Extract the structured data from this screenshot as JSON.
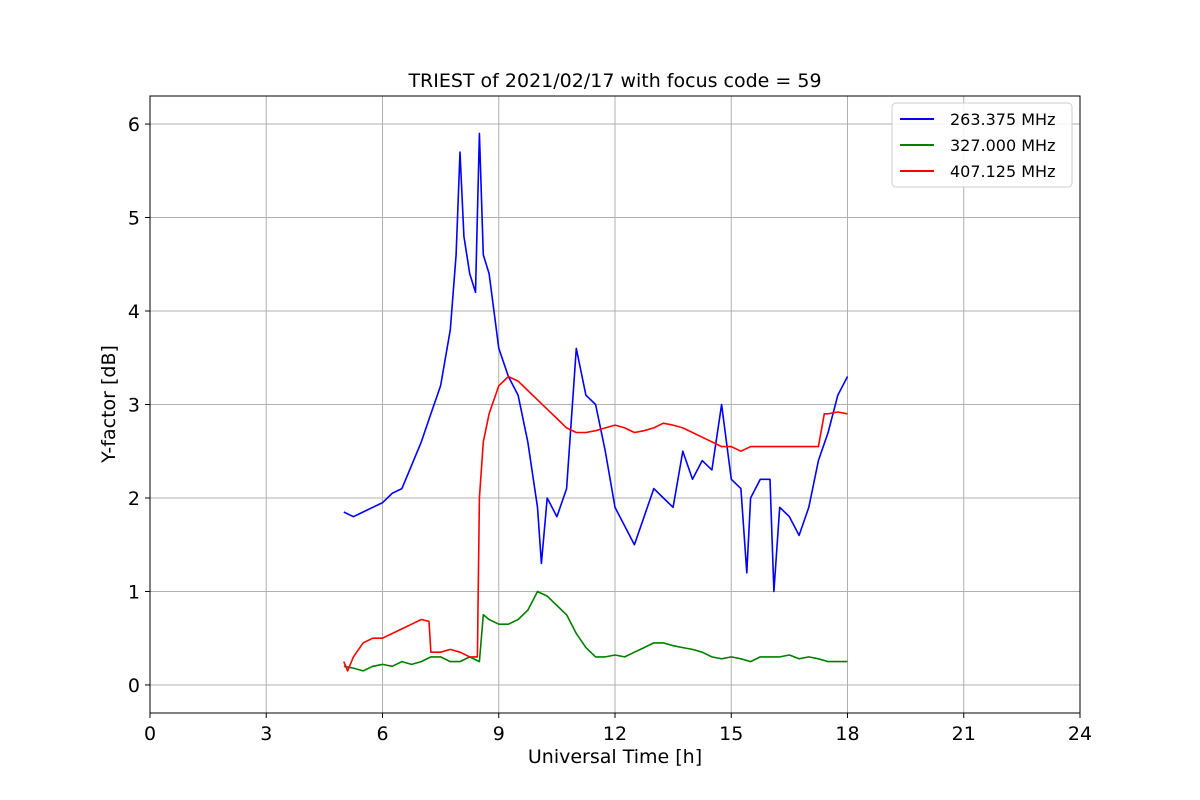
{
  "chart_data": {
    "type": "line",
    "title": "TRIEST of 2021/02/17 with focus code = 59",
    "xlabel": "Universal Time [h]",
    "ylabel": "Y-factor [dB]",
    "xlim": [
      0,
      24
    ],
    "ylim": [
      -0.3,
      6.3
    ],
    "xticks": [
      0,
      3,
      6,
      9,
      12,
      15,
      18,
      21,
      24
    ],
    "yticks": [
      0,
      1,
      2,
      3,
      4,
      5,
      6
    ],
    "grid": true,
    "legend_position": "upper-right",
    "series": [
      {
        "name": "263.375 MHz",
        "color": "#0000ff",
        "x": [
          5.0,
          5.25,
          5.5,
          5.75,
          6.0,
          6.25,
          6.5,
          6.75,
          7.0,
          7.25,
          7.5,
          7.75,
          7.9,
          8.0,
          8.1,
          8.25,
          8.4,
          8.5,
          8.6,
          8.75,
          9.0,
          9.25,
          9.5,
          9.75,
          10.0,
          10.1,
          10.25,
          10.5,
          10.75,
          11.0,
          11.25,
          11.5,
          11.75,
          12.0,
          12.25,
          12.5,
          12.75,
          13.0,
          13.25,
          13.5,
          13.75,
          14.0,
          14.25,
          14.5,
          14.75,
          15.0,
          15.25,
          15.4,
          15.5,
          15.75,
          16.0,
          16.1,
          16.25,
          16.5,
          16.75,
          17.0,
          17.25,
          17.5,
          17.75,
          18.0
        ],
        "y": [
          1.85,
          1.8,
          1.85,
          1.9,
          1.95,
          2.05,
          2.1,
          2.35,
          2.6,
          2.9,
          3.2,
          3.8,
          4.6,
          5.7,
          4.8,
          4.4,
          4.2,
          5.9,
          4.6,
          4.4,
          3.6,
          3.3,
          3.1,
          2.6,
          1.9,
          1.3,
          2.0,
          1.8,
          2.1,
          3.6,
          3.1,
          3.0,
          2.5,
          1.9,
          1.7,
          1.5,
          1.8,
          2.1,
          2.0,
          1.9,
          2.5,
          2.2,
          2.4,
          2.3,
          3.0,
          2.2,
          2.1,
          1.2,
          2.0,
          2.2,
          2.2,
          1.0,
          1.9,
          1.8,
          1.6,
          1.9,
          2.4,
          2.7,
          3.1,
          3.3
        ]
      },
      {
        "name": "327.000 MHz",
        "color": "#008000",
        "x": [
          5.0,
          5.25,
          5.5,
          5.75,
          6.0,
          6.25,
          6.5,
          6.75,
          7.0,
          7.25,
          7.5,
          7.75,
          8.0,
          8.25,
          8.5,
          8.6,
          8.75,
          9.0,
          9.25,
          9.5,
          9.75,
          10.0,
          10.25,
          10.5,
          10.75,
          11.0,
          11.25,
          11.5,
          11.75,
          12.0,
          12.25,
          12.5,
          12.75,
          13.0,
          13.25,
          13.5,
          13.75,
          14.0,
          14.25,
          14.5,
          14.75,
          15.0,
          15.25,
          15.5,
          15.75,
          16.0,
          16.25,
          16.5,
          16.75,
          17.0,
          17.25,
          17.5,
          17.75,
          18.0
        ],
        "y": [
          0.2,
          0.18,
          0.15,
          0.2,
          0.22,
          0.2,
          0.25,
          0.22,
          0.25,
          0.3,
          0.3,
          0.25,
          0.25,
          0.3,
          0.25,
          0.75,
          0.7,
          0.65,
          0.65,
          0.7,
          0.8,
          1.0,
          0.95,
          0.85,
          0.75,
          0.55,
          0.4,
          0.3,
          0.3,
          0.32,
          0.3,
          0.35,
          0.4,
          0.45,
          0.45,
          0.42,
          0.4,
          0.38,
          0.35,
          0.3,
          0.28,
          0.3,
          0.28,
          0.25,
          0.3,
          0.3,
          0.3,
          0.32,
          0.28,
          0.3,
          0.28,
          0.25,
          0.25,
          0.25
        ]
      },
      {
        "name": "407.125 MHz",
        "color": "#ff0000",
        "x": [
          5.0,
          5.1,
          5.25,
          5.5,
          5.75,
          6.0,
          6.25,
          6.5,
          6.75,
          7.0,
          7.2,
          7.25,
          7.5,
          7.75,
          8.0,
          8.25,
          8.45,
          8.5,
          8.6,
          8.75,
          9.0,
          9.25,
          9.5,
          9.75,
          10.0,
          10.25,
          10.5,
          10.75,
          11.0,
          11.25,
          11.5,
          11.75,
          12.0,
          12.25,
          12.5,
          12.75,
          13.0,
          13.25,
          13.5,
          13.75,
          14.0,
          14.25,
          14.5,
          14.75,
          15.0,
          15.25,
          15.5,
          15.75,
          16.0,
          16.25,
          16.5,
          16.75,
          17.0,
          17.25,
          17.4,
          17.5,
          17.75,
          18.0
        ],
        "y": [
          0.25,
          0.15,
          0.3,
          0.45,
          0.5,
          0.5,
          0.55,
          0.6,
          0.65,
          0.7,
          0.68,
          0.35,
          0.35,
          0.38,
          0.35,
          0.3,
          0.3,
          2.0,
          2.6,
          2.9,
          3.2,
          3.3,
          3.25,
          3.15,
          3.05,
          2.95,
          2.85,
          2.75,
          2.7,
          2.7,
          2.72,
          2.75,
          2.78,
          2.75,
          2.7,
          2.72,
          2.75,
          2.8,
          2.78,
          2.75,
          2.7,
          2.65,
          2.6,
          2.55,
          2.55,
          2.5,
          2.55,
          2.55,
          2.55,
          2.55,
          2.55,
          2.55,
          2.55,
          2.55,
          2.9,
          2.9,
          2.92,
          2.9
        ]
      }
    ]
  }
}
